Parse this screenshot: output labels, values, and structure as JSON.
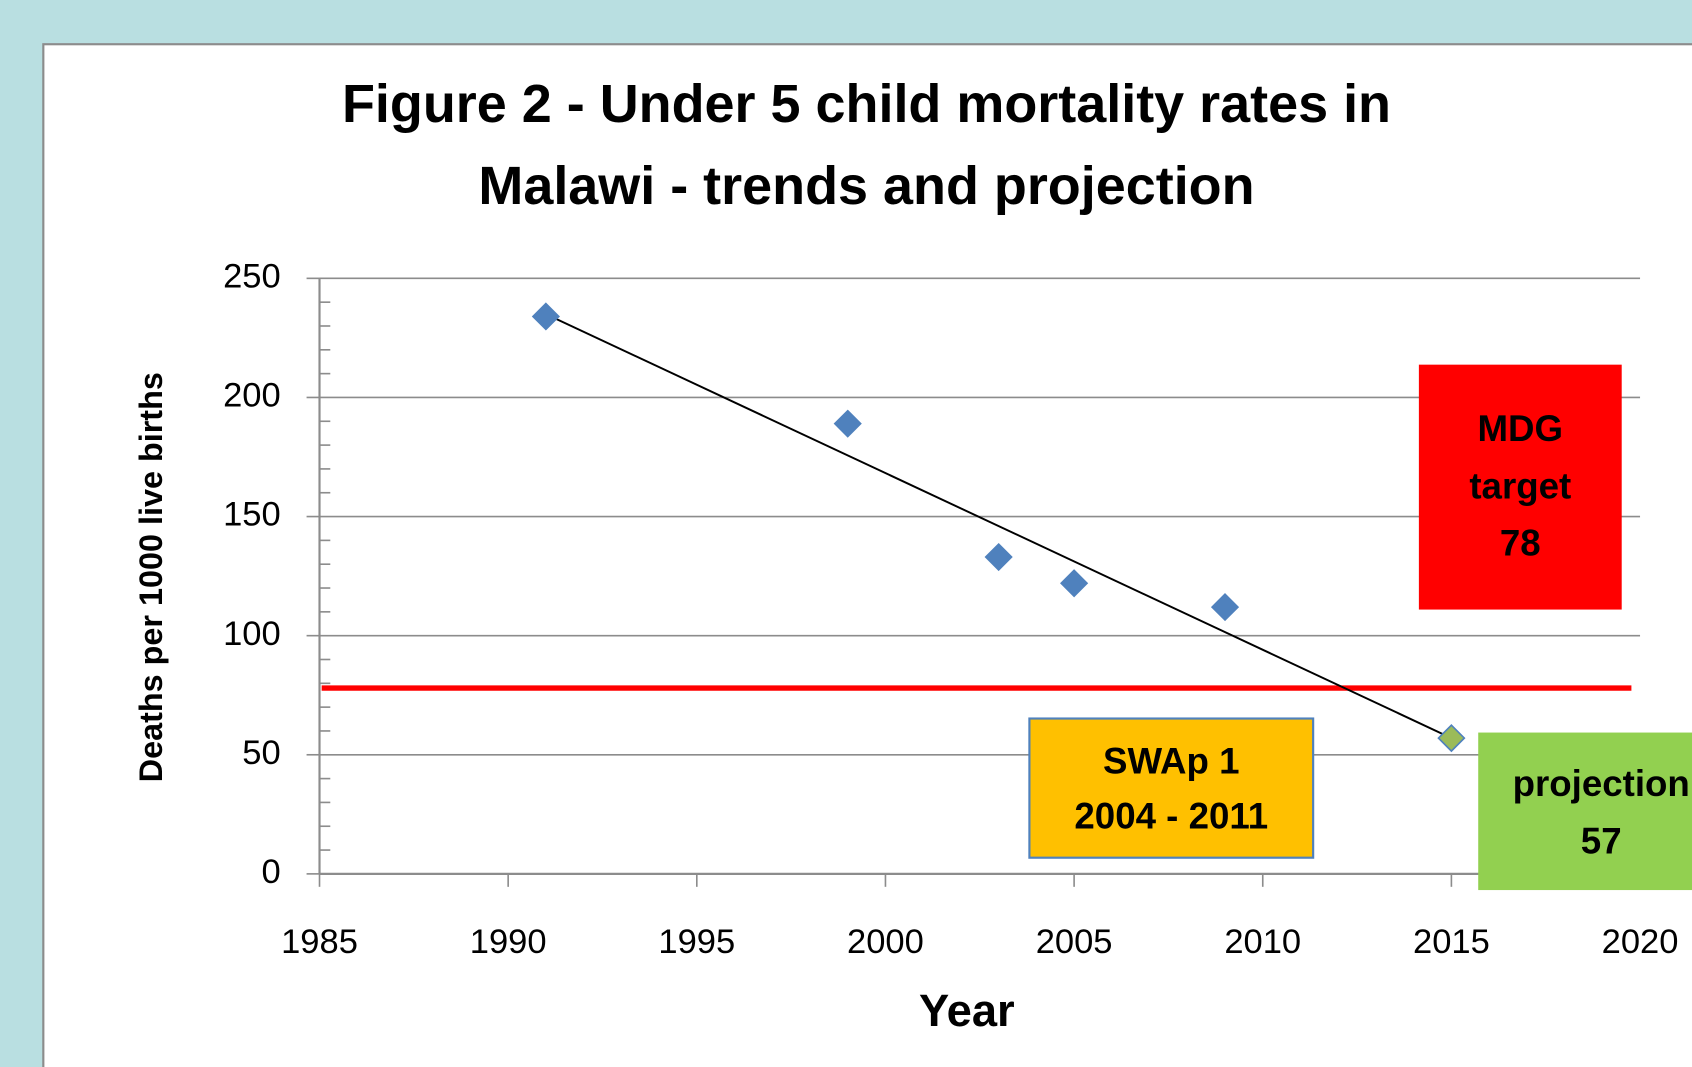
{
  "chart_data": {
    "type": "scatter",
    "title": [
      "Figure 2 - Under 5 child mortality rates in",
      "Malawi - trends and projection"
    ],
    "x_label": "Year",
    "y_label": "Deaths per 1000 live births",
    "xlim": [
      1985,
      2020
    ],
    "xticks": [
      1985,
      1990,
      1995,
      2000,
      2005,
      2010,
      2015,
      2020
    ],
    "ylim": [
      0,
      250
    ],
    "yticks": [
      0,
      50,
      100,
      150,
      200,
      250
    ],
    "grid": true,
    "x": [
      1991,
      1999,
      2003,
      2005,
      2009,
      2015
    ],
    "values": [
      234,
      189,
      133,
      122,
      112,
      57
    ],
    "colors": [
      "#4f81bd",
      "#4f81bd",
      "#4f81bd",
      "#4f81bd",
      "#4f81bd",
      "#9bbb59"
    ],
    "trendline": {
      "x": [
        1991,
        2015
      ],
      "values": [
        235,
        57
      ],
      "color": "#000000"
    },
    "target_line": {
      "value": 78,
      "color": "#ff0000"
    },
    "annotations": [
      {
        "lines": [
          "MDG",
          "target",
          "78"
        ],
        "color": "#ff0000"
      },
      {
        "lines": [
          "SWAp 1",
          "2004 - 2011"
        ],
        "color": "#ffc000"
      },
      {
        "lines": [
          "projection",
          "57"
        ],
        "color": "#92d050"
      }
    ]
  }
}
